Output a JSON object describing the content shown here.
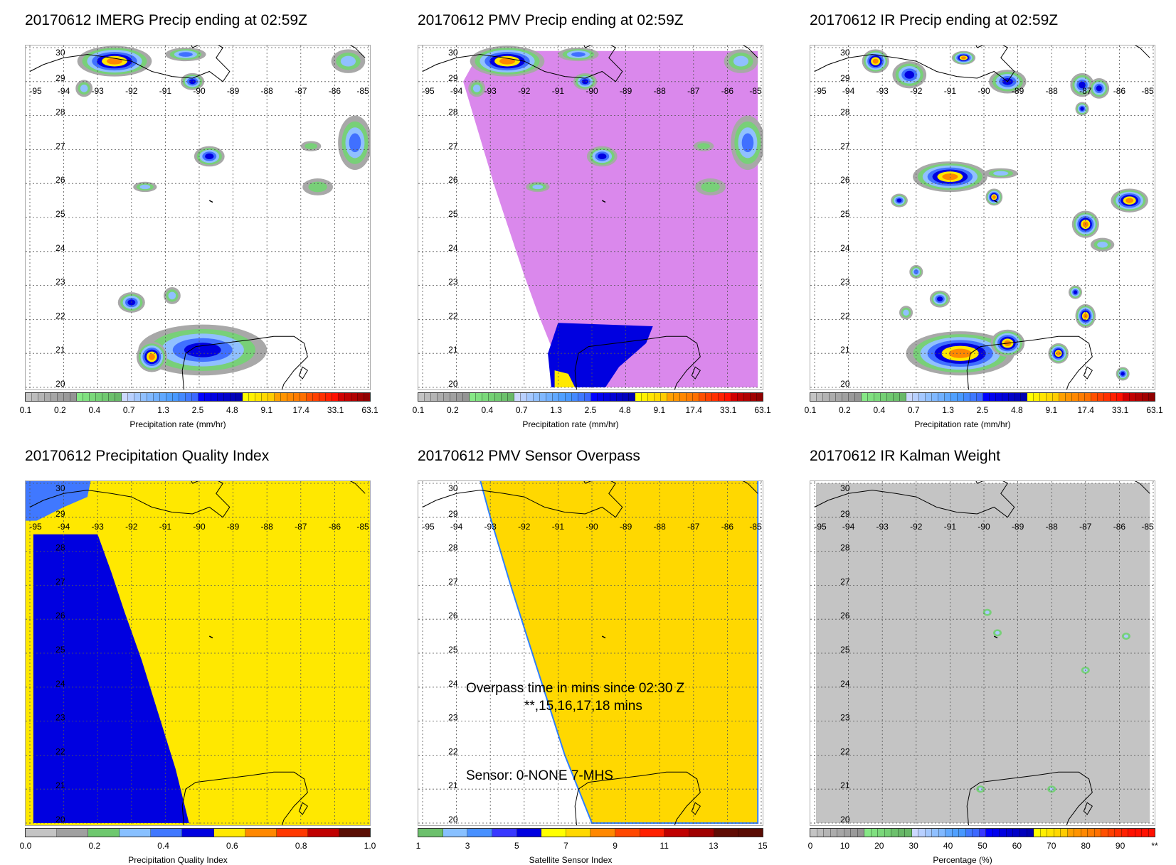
{
  "panels": [
    {
      "title": "20170612 IMERG Precip ending at 02:59Z",
      "type": "precip",
      "colorbar_label": "Precipitation rate (mm/hr)"
    },
    {
      "title": "20170612 PMV Precip ending at 02:59Z",
      "type": "pmv",
      "colorbar_label": "Precipitation rate (mm/hr)"
    },
    {
      "title": "20170612 IR Precip ending at 02:59Z",
      "type": "ir",
      "colorbar_label": "Precipitation rate (mm/hr)"
    },
    {
      "title": "20170612 Precipitation Quality Index",
      "type": "pqi",
      "colorbar_label": "Precipitation Quality Index"
    },
    {
      "title": "20170612 PMV Sensor Overpass",
      "type": "overpass",
      "colorbar_label": "Satellite Sensor Index",
      "overpass_text": "Overpass time in mins since 02:30 Z",
      "overpass_times": "**,15,16,17,18 mins",
      "sensor_text": "Sensor:   0-NONE  7-MHS"
    },
    {
      "title": "20170612 IR Kalman Weight",
      "type": "kalman",
      "colorbar_label": "Percentage (%)"
    }
  ],
  "map_axes": {
    "lon_ticks": [
      "-95",
      "-94",
      "-93",
      "-92",
      "-91",
      "-90",
      "-89",
      "-88",
      "-87",
      "-86",
      "-85"
    ],
    "lat_ticks": [
      "20",
      "21",
      "22",
      "23",
      "24",
      "25",
      "26",
      "27",
      "28",
      "29",
      "30"
    ]
  },
  "colorbars": {
    "precip": {
      "ticks": [
        "0.1",
        "0.2",
        "0.4",
        "0.7",
        "1.3",
        "2.5",
        "4.8",
        "9.1",
        "17.4",
        "33.1",
        "63.1"
      ],
      "colors": [
        "#c4c4c4",
        "#bcbcbc",
        "#b4b4b4",
        "#acacac",
        "#a6a6a6",
        "#a0a0a0",
        "#9a9a9a",
        "#949494",
        "#86e886",
        "#80e080",
        "#7ad87a",
        "#74d074",
        "#70c870",
        "#6cc06c",
        "#68b868",
        "#ccd8ff",
        "#b8d0ff",
        "#a4c8ff",
        "#90c0ff",
        "#80b8ff",
        "#70b0ff",
        "#60a8ff",
        "#50a0ff",
        "#4898ff",
        "#4488ff",
        "#4078ff",
        "#3c68ff",
        "#0000ff",
        "#0000ee",
        "#0000e0",
        "#0000d4",
        "#0000c8",
        "#0000bc",
        "#0000b0",
        "#ffff00",
        "#fff000",
        "#ffe400",
        "#ffd800",
        "#ffcc00",
        "#ffa000",
        "#ff9400",
        "#ff8800",
        "#ff7c00",
        "#ff7000",
        "#ff5000",
        "#ff4000",
        "#ff3000",
        "#ff2000",
        "#ff1000",
        "#d00000",
        "#c00000",
        "#b00000",
        "#a00000",
        "#900000"
      ]
    },
    "pqi": {
      "ticks": [
        "0.0",
        "0.2",
        "0.4",
        "0.6",
        "0.8",
        "1.0"
      ],
      "colors": [
        "#c4c4c4",
        "#a0a0a0",
        "#6ec86e",
        "#88c0ff",
        "#4078ff",
        "#0000e0",
        "#ffe800",
        "#ff8800",
        "#ff3800",
        "#c00000",
        "#5a0e04"
      ]
    },
    "sensor": {
      "ticks": [
        "1",
        "3",
        "5",
        "7",
        "9",
        "11",
        "13",
        "15"
      ],
      "colors": [
        "#6cc06c",
        "#88c0ff",
        "#4890ff",
        "#3838ff",
        "#0000e0",
        "#ffff00",
        "#ffd800",
        "#ff8800",
        "#ff4800",
        "#ff2000",
        "#c00000",
        "#a00000",
        "#600c04",
        "#5a0c04"
      ]
    },
    "kalman": {
      "ticks": [
        "0",
        "10",
        "20",
        "30",
        "40",
        "50",
        "60",
        "70",
        "80",
        "90",
        "**"
      ],
      "colors": [
        "#c4c4c4",
        "#bcbcbc",
        "#b4b4b4",
        "#acacac",
        "#a6a6a6",
        "#a0a0a0",
        "#9a9a9a",
        "#949494",
        "#86e886",
        "#80e080",
        "#7ad87a",
        "#74d074",
        "#6cc06c",
        "#68b868",
        "#68b868",
        "#ccd8ff",
        "#b8d0ff",
        "#a4c8ff",
        "#90c0ff",
        "#80b8ff",
        "#60a8ff",
        "#50a0ff",
        "#4898ff",
        "#4078ff",
        "#3c68ff",
        "#3838ff",
        "#0000ff",
        "#0000ee",
        "#0000e0",
        "#0000d4",
        "#0000c8",
        "#0000bc",
        "#0000b0",
        "#ffff00",
        "#fff000",
        "#ffe400",
        "#ffd800",
        "#ffcc00",
        "#ffa000",
        "#ff9400",
        "#ff8800",
        "#ff7c00",
        "#ff7000",
        "#ff5000",
        "#ff4000",
        "#ff3000",
        "#ff2000",
        "#ff1000",
        "#ff1000",
        "#ff1000",
        "#ff1000"
      ]
    }
  },
  "colors": {
    "pmv_coverage": "#da88ec",
    "pqi_low": "#0000e0",
    "pqi_high": "#ffe800",
    "overpass": "#ffd800",
    "kalman_fill": "#c4c4c4"
  }
}
